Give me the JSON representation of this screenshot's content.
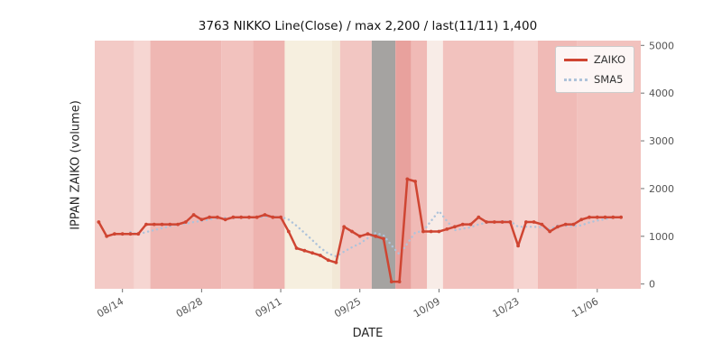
{
  "chart_data": {
    "type": "line",
    "title": "3763 NIKKO Line(Close) / max 2,200 / last(11/11) 1,400",
    "xlabel": "DATE",
    "ylabel": "IPPAN ZAIKO (volume)",
    "legend_position": "upper right",
    "grid": false,
    "xlim": [
      -0.5,
      68.5
    ],
    "ylim": [
      -100,
      5100
    ],
    "y_ticks": [
      0,
      1000,
      2000,
      3000,
      4000,
      5000
    ],
    "x_tick_labels": [
      "08/14",
      "08/28",
      "09/11",
      "09/25",
      "10/09",
      "10/23",
      "11/06"
    ],
    "x_tick_indices": [
      3,
      13,
      23,
      33,
      43,
      53,
      63
    ],
    "dates": [
      "08/09",
      "08/12",
      "08/13",
      "08/14",
      "08/15",
      "08/16",
      "08/19",
      "08/20",
      "08/21",
      "08/22",
      "08/23",
      "08/26",
      "08/27",
      "08/28",
      "08/29",
      "08/30",
      "09/02",
      "09/03",
      "09/04",
      "09/05",
      "09/06",
      "09/09",
      "09/10",
      "09/11",
      "09/12",
      "09/13",
      "09/16",
      "09/17",
      "09/18",
      "09/19",
      "09/20",
      "09/23",
      "09/24",
      "09/25",
      "09/26",
      "09/27",
      "09/30",
      "10/01",
      "10/02",
      "10/03",
      "10/04",
      "10/07",
      "10/08",
      "10/09",
      "10/10",
      "10/11",
      "10/14",
      "10/15",
      "10/16",
      "10/17",
      "10/18",
      "10/21",
      "10/22",
      "10/23",
      "10/24",
      "10/25",
      "10/28",
      "10/29",
      "10/30",
      "10/31",
      "11/01",
      "11/04",
      "11/05",
      "11/06",
      "11/07",
      "11/08",
      "11/11"
    ],
    "series": [
      {
        "name": "ZAIKO",
        "color": "#cf4532",
        "style": "solid",
        "values": [
          1300,
          1000,
          1050,
          1050,
          1050,
          1050,
          1250,
          1250,
          1250,
          1250,
          1250,
          1300,
          1450,
          1350,
          1400,
          1400,
          1350,
          1400,
          1400,
          1400,
          1400,
          1450,
          1400,
          1400,
          1100,
          750,
          700,
          650,
          600,
          500,
          450,
          1200,
          1100,
          1000,
          1050,
          1000,
          950,
          50,
          50,
          2200,
          2150,
          1100,
          1100,
          1100,
          1150,
          1200,
          1250,
          1250,
          1400,
          1300,
          1300,
          1300,
          1300,
          800,
          1300,
          1300,
          1250,
          1100,
          1200,
          1250,
          1250,
          1350,
          1400,
          1400,
          1400,
          1400,
          1400
        ]
      },
      {
        "name": "SMA5",
        "color": "#aec3da",
        "style": "dotted",
        "values": [
          null,
          null,
          null,
          null,
          1090,
          1040,
          1090,
          1130,
          1170,
          1210,
          1250,
          1260,
          1300,
          1320,
          1350,
          1380,
          1390,
          1380,
          1390,
          1390,
          1390,
          1410,
          1410,
          1410,
          1350,
          1220,
          1070,
          920,
          760,
          640,
          580,
          680,
          770,
          850,
          960,
          1070,
          1020,
          810,
          620,
          850,
          1080,
          1110,
          1320,
          1530,
          1320,
          1130,
          1160,
          1190,
          1250,
          1280,
          1300,
          1310,
          1320,
          1200,
          1200,
          1200,
          1190,
          1150,
          1230,
          1220,
          1210,
          1230,
          1290,
          1330,
          1360,
          1390,
          1400
        ]
      }
    ],
    "background_bands": [
      {
        "from": -0.5,
        "to": 4.5,
        "color": "#f3cac6"
      },
      {
        "from": 4.5,
        "to": 6.5,
        "color": "#f6d6d2"
      },
      {
        "from": 6.5,
        "to": 15.5,
        "color": "#efb7b3"
      },
      {
        "from": 15.5,
        "to": 19.5,
        "color": "#f2c2be"
      },
      {
        "from": 19.5,
        "to": 23.5,
        "color": "#eeb3af"
      },
      {
        "from": 23.5,
        "to": 29.5,
        "color": "#f6efdf"
      },
      {
        "from": 29.5,
        "to": 30.5,
        "color": "#f2e8d6"
      },
      {
        "from": 30.5,
        "to": 34.5,
        "color": "#f2c6c2"
      },
      {
        "from": 34.5,
        "to": 37.5,
        "color": "#a5a3a1"
      },
      {
        "from": 37.5,
        "to": 39.5,
        "color": "#e8a19d"
      },
      {
        "from": 39.5,
        "to": 41.5,
        "color": "#f0bab6"
      },
      {
        "from": 41.5,
        "to": 43.5,
        "color": "#f8ece7"
      },
      {
        "from": 43.5,
        "to": 52.5,
        "color": "#f2c2be"
      },
      {
        "from": 52.5,
        "to": 55.5,
        "color": "#f6d4d0"
      },
      {
        "from": 55.5,
        "to": 60.5,
        "color": "#f0bab6"
      },
      {
        "from": 60.5,
        "to": 68.5,
        "color": "#f2c2be"
      }
    ]
  }
}
